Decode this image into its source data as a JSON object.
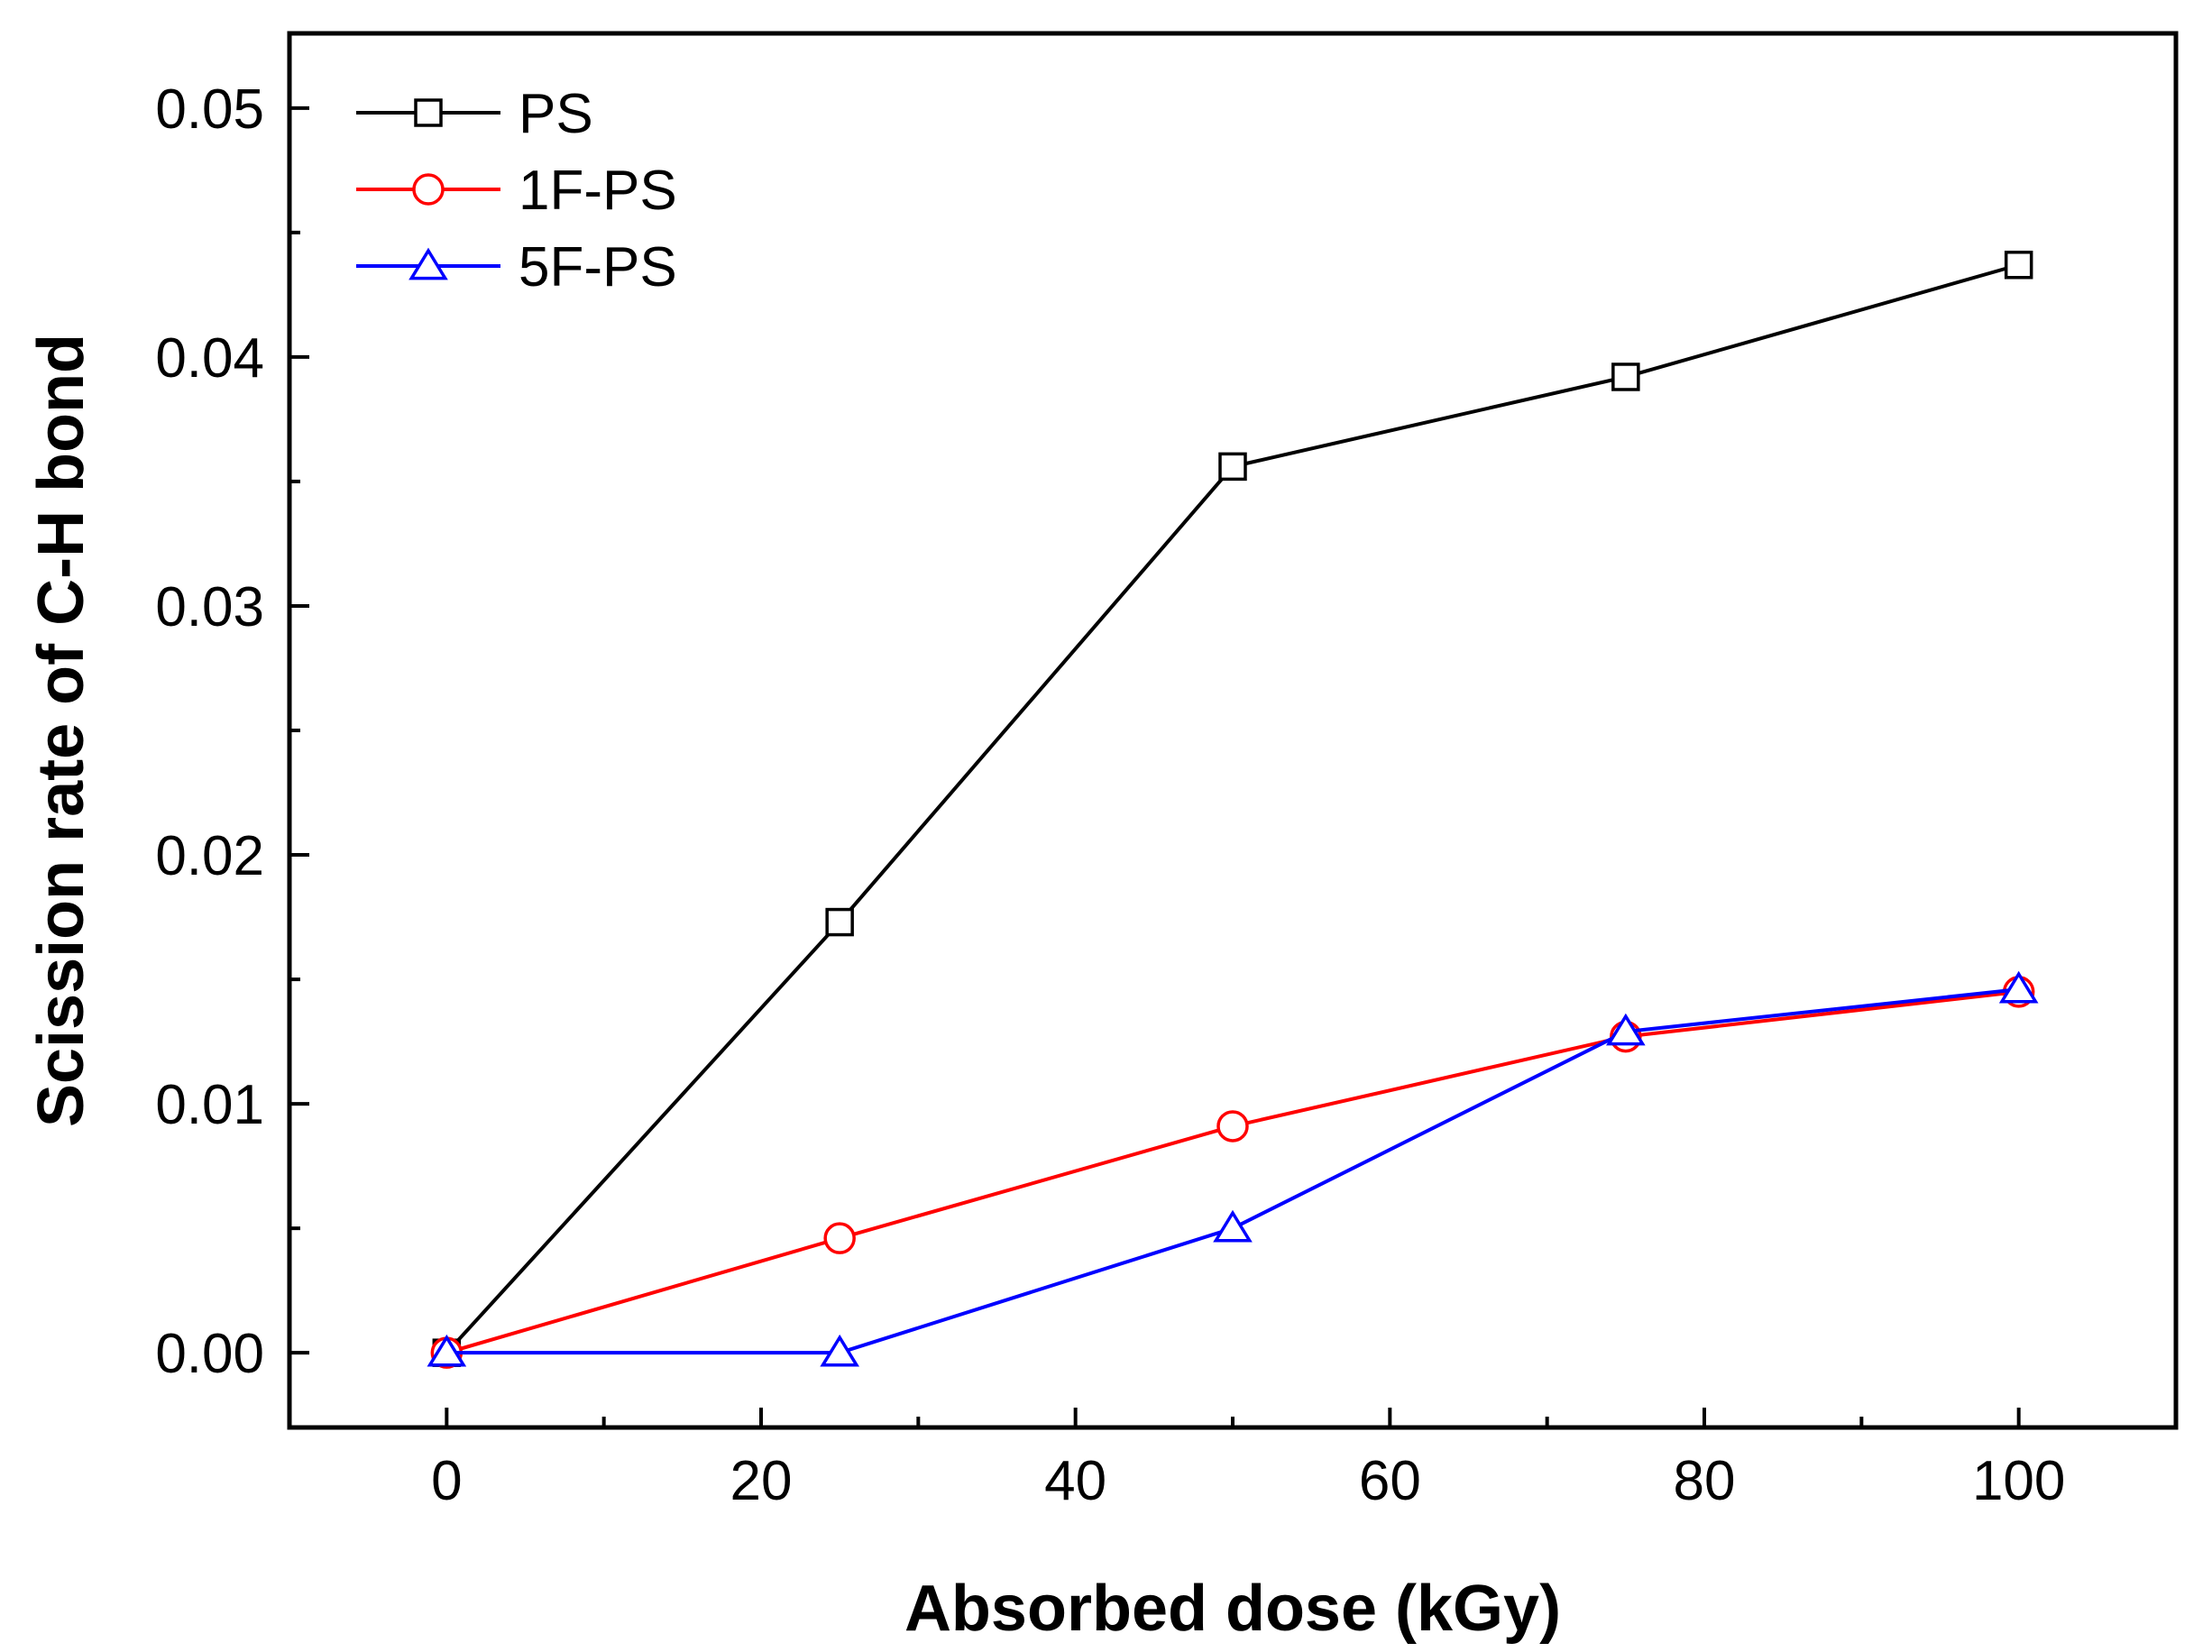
{
  "chart_data": {
    "type": "line",
    "xlabel": "Absorbed dose (kGy)",
    "ylabel": "Scission rate of C-H bond",
    "xlim": [
      -10,
      110
    ],
    "ylim": [
      -0.003,
      0.053
    ],
    "x_ticks": [
      0,
      20,
      40,
      60,
      80,
      100
    ],
    "x_tick_labels": [
      "0",
      "20",
      "40",
      "60",
      "80",
      "100"
    ],
    "y_ticks": [
      0.0,
      0.01,
      0.02,
      0.03,
      0.04,
      0.05
    ],
    "y_tick_labels": [
      "0.00",
      "0.01",
      "0.02",
      "0.03",
      "0.04",
      "0.05"
    ],
    "grid": false,
    "legend_position": "top-left",
    "x": [
      0,
      25,
      50,
      75,
      100
    ],
    "series": [
      {
        "name": "PS",
        "values": [
          0.0,
          0.0173,
          0.0356,
          0.0392,
          0.0437
        ],
        "color": "#000000",
        "marker": "square"
      },
      {
        "name": "1F-PS",
        "values": [
          0.0,
          0.0046,
          0.0091,
          0.0127,
          0.0145
        ],
        "color": "#ff0000",
        "marker": "circle"
      },
      {
        "name": "5F-PS",
        "values": [
          0.0,
          0.0,
          0.005,
          0.0129,
          0.0146
        ],
        "color": "#0000ff",
        "marker": "triangle"
      }
    ]
  }
}
